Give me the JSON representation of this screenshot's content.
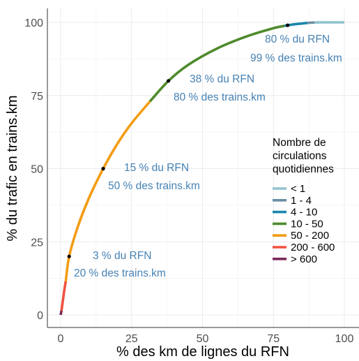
{
  "chart_data": {
    "type": "line",
    "xlabel": "% des km de lignes du RFN",
    "ylabel": "% du trafic en trains.km",
    "xlim": [
      0,
      100
    ],
    "ylim": [
      0,
      100
    ],
    "xticks": [
      0,
      25,
      50,
      75,
      100
    ],
    "yticks": [
      0,
      25,
      50,
      75,
      100
    ],
    "grid": true,
    "legend": {
      "title_lines": [
        "Nombre de",
        "circulations",
        "quotidiennes"
      ],
      "placement": "right",
      "entries": [
        {
          "label": "< 1",
          "color": "#8fc3cc"
        },
        {
          "label": "1  -  4",
          "color": "#6b8ea5"
        },
        {
          "label": "4  -  10",
          "color": "#1a86ad"
        },
        {
          "label": "10  -  50",
          "color": "#4f8a2d"
        },
        {
          "label": "50  -  200",
          "color": "#f39c12"
        },
        {
          "label": "200  -  600",
          "color": "#f0513f"
        },
        {
          "label": "> 600",
          "color": "#7b2a5a"
        }
      ]
    },
    "series": [
      {
        "legend_index": 6,
        "points": [
          [
            0,
            0
          ],
          [
            0.3,
            1.5
          ]
        ]
      },
      {
        "legend_index": 5,
        "points": [
          [
            0.3,
            1.5
          ],
          [
            0.8,
            5
          ],
          [
            1.3,
            8.5
          ],
          [
            1.8,
            11.5
          ]
        ]
      },
      {
        "legend_index": 4,
        "points": [
          [
            1.8,
            11.5
          ],
          [
            3,
            20
          ],
          [
            6,
            30
          ],
          [
            10,
            40
          ],
          [
            15,
            50
          ],
          [
            20,
            58.5
          ],
          [
            25,
            65.5
          ],
          [
            31.5,
            73
          ]
        ]
      },
      {
        "legend_index": 3,
        "points": [
          [
            31.5,
            73
          ],
          [
            38,
            80
          ],
          [
            45,
            85.5
          ],
          [
            55,
            91
          ],
          [
            65,
            95
          ],
          [
            75,
            98
          ],
          [
            79,
            98.8
          ]
        ]
      },
      {
        "legend_index": 2,
        "points": [
          [
            79,
            98.8
          ],
          [
            80,
            99
          ],
          [
            84,
            99.5
          ],
          [
            87,
            99.8
          ]
        ]
      },
      {
        "legend_index": 1,
        "points": [
          [
            87,
            99.8
          ],
          [
            88,
            99.88
          ],
          [
            89.5,
            99.95
          ]
        ]
      },
      {
        "legend_index": 0,
        "points": [
          [
            89.5,
            99.95
          ],
          [
            92,
            100
          ],
          [
            100,
            100
          ]
        ]
      }
    ],
    "markers": [
      {
        "x": 3,
        "y": 20
      },
      {
        "x": 15,
        "y": 50
      },
      {
        "x": 38,
        "y": 80
      },
      {
        "x": 80,
        "y": 99
      }
    ],
    "annotations": [
      {
        "line1": "3 % du RFN",
        "line2": "20 % des trains.km",
        "x": 3,
        "y": 20
      },
      {
        "line1": "15 % du RFN",
        "line2": "50 % des trains.km",
        "x": 15,
        "y": 50
      },
      {
        "line1": "38 % du RFN",
        "line2": "80 % des trains.km",
        "x": 38,
        "y": 80
      },
      {
        "line1": "80 % du RFN",
        "line2": "99 % des trains.km",
        "x": 80,
        "y": 99
      }
    ]
  }
}
